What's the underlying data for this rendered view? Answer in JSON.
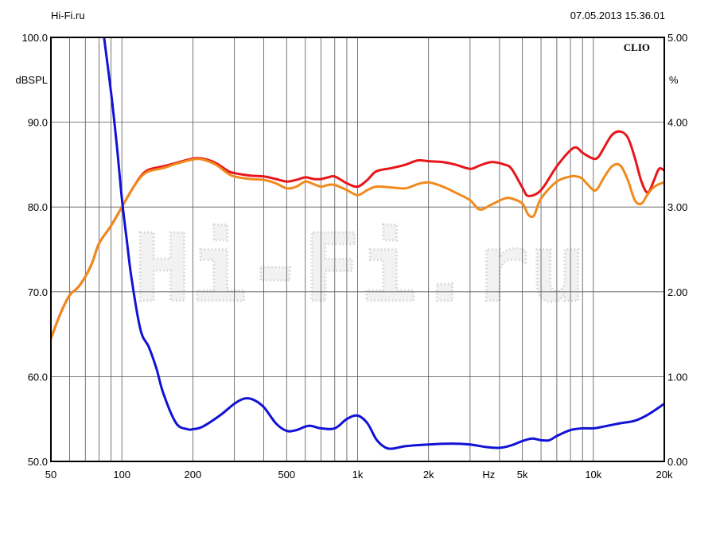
{
  "header": {
    "site": "Hi-Fi.ru",
    "datetime": "07.05.2013 15.36.01"
  },
  "chart_data": {
    "type": "line",
    "brand": "CLIO",
    "watermark": "Hi-Fi.ru",
    "x_scale": "log",
    "xlim": [
      50,
      20000
    ],
    "xlabel": "Hz",
    "x_ticks": [
      50,
      100,
      200,
      500,
      1000,
      2000,
      5000,
      10000,
      20000
    ],
    "x_tick_labels": [
      "50",
      "100",
      "200",
      "500",
      "1k",
      "2k",
      "5k",
      "10k",
      "20k"
    ],
    "ylim": [
      50,
      100
    ],
    "ylabel": "dBSPL",
    "y_ticks": [
      50,
      60,
      70,
      80,
      90,
      100
    ],
    "y_tick_labels": [
      "50.0",
      "60.0",
      "70.0",
      "80.0",
      "90.0",
      "100.0"
    ],
    "y2lim": [
      0,
      5
    ],
    "y2label": "%",
    "y2_ticks": [
      0,
      1,
      2,
      3,
      4,
      5
    ],
    "y2_tick_labels": [
      "0.00",
      "1.00",
      "2.00",
      "3.00",
      "4.00",
      "5.00"
    ],
    "grid": true,
    "series": [
      {
        "color": "#e8161b",
        "axis": "left",
        "points": [
          [
            50,
            64.5
          ],
          [
            55,
            67.5
          ],
          [
            60,
            69.6
          ],
          [
            65,
            70.5
          ],
          [
            70,
            71.8
          ],
          [
            75,
            73.5
          ],
          [
            80,
            75.7
          ],
          [
            90,
            77.8
          ],
          [
            100,
            80.0
          ],
          [
            110,
            82.0
          ],
          [
            120,
            83.6
          ],
          [
            130,
            84.4
          ],
          [
            150,
            84.8
          ],
          [
            170,
            85.2
          ],
          [
            200,
            85.7
          ],
          [
            220,
            85.7
          ],
          [
            250,
            85.2
          ],
          [
            280,
            84.3
          ],
          [
            300,
            84.0
          ],
          [
            350,
            83.7
          ],
          [
            400,
            83.6
          ],
          [
            450,
            83.3
          ],
          [
            500,
            83.0
          ],
          [
            550,
            83.2
          ],
          [
            600,
            83.5
          ],
          [
            650,
            83.3
          ],
          [
            700,
            83.3
          ],
          [
            750,
            83.5
          ],
          [
            800,
            83.6
          ],
          [
            900,
            82.8
          ],
          [
            1000,
            82.4
          ],
          [
            1100,
            83.2
          ],
          [
            1200,
            84.2
          ],
          [
            1400,
            84.6
          ],
          [
            1600,
            85.0
          ],
          [
            1800,
            85.5
          ],
          [
            2000,
            85.4
          ],
          [
            2300,
            85.3
          ],
          [
            2600,
            85.0
          ],
          [
            3000,
            84.5
          ],
          [
            3300,
            84.9
          ],
          [
            3700,
            85.3
          ],
          [
            4200,
            85.0
          ],
          [
            4500,
            84.5
          ],
          [
            5000,
            82.3
          ],
          [
            5300,
            81.3
          ],
          [
            6000,
            82.0
          ],
          [
            7000,
            84.8
          ],
          [
            8000,
            86.7
          ],
          [
            8500,
            87.0
          ],
          [
            9000,
            86.4
          ],
          [
            10000,
            85.7
          ],
          [
            10500,
            85.9
          ],
          [
            11000,
            86.8
          ],
          [
            12000,
            88.5
          ],
          [
            13000,
            88.9
          ],
          [
            14000,
            88.2
          ],
          [
            15000,
            85.8
          ],
          [
            16000,
            83.0
          ],
          [
            17000,
            81.7
          ],
          [
            18000,
            83.0
          ],
          [
            19000,
            84.5
          ],
          [
            20000,
            84.3
          ]
        ]
      },
      {
        "color": "#f08a1c",
        "axis": "left",
        "points": [
          [
            50,
            64.5
          ],
          [
            55,
            67.5
          ],
          [
            60,
            69.6
          ],
          [
            65,
            70.5
          ],
          [
            70,
            71.8
          ],
          [
            75,
            73.5
          ],
          [
            80,
            75.7
          ],
          [
            90,
            77.8
          ],
          [
            100,
            80.0
          ],
          [
            110,
            82.0
          ],
          [
            120,
            83.5
          ],
          [
            130,
            84.2
          ],
          [
            150,
            84.6
          ],
          [
            170,
            85.1
          ],
          [
            200,
            85.6
          ],
          [
            220,
            85.6
          ],
          [
            250,
            85.0
          ],
          [
            280,
            84.0
          ],
          [
            300,
            83.6
          ],
          [
            350,
            83.3
          ],
          [
            400,
            83.2
          ],
          [
            450,
            82.8
          ],
          [
            500,
            82.2
          ],
          [
            550,
            82.4
          ],
          [
            600,
            83.0
          ],
          [
            650,
            82.7
          ],
          [
            700,
            82.4
          ],
          [
            750,
            82.6
          ],
          [
            800,
            82.6
          ],
          [
            900,
            82.0
          ],
          [
            1000,
            81.4
          ],
          [
            1100,
            82.0
          ],
          [
            1200,
            82.4
          ],
          [
            1400,
            82.3
          ],
          [
            1600,
            82.2
          ],
          [
            1800,
            82.7
          ],
          [
            2000,
            82.9
          ],
          [
            2300,
            82.4
          ],
          [
            2600,
            81.7
          ],
          [
            3000,
            80.8
          ],
          [
            3300,
            79.7
          ],
          [
            3700,
            80.3
          ],
          [
            4200,
            81.0
          ],
          [
            4500,
            81.0
          ],
          [
            5000,
            80.4
          ],
          [
            5300,
            79.1
          ],
          [
            5600,
            79.0
          ],
          [
            6000,
            81.0
          ],
          [
            7000,
            83.0
          ],
          [
            8000,
            83.6
          ],
          [
            8500,
            83.6
          ],
          [
            9000,
            83.3
          ],
          [
            10000,
            82.0
          ],
          [
            10500,
            82.3
          ],
          [
            11000,
            83.3
          ],
          [
            12000,
            84.8
          ],
          [
            13000,
            84.9
          ],
          [
            14000,
            83.2
          ],
          [
            15000,
            80.8
          ],
          [
            16000,
            80.4
          ],
          [
            17000,
            81.5
          ],
          [
            18000,
            82.3
          ],
          [
            19000,
            82.7
          ],
          [
            20000,
            82.9
          ]
        ]
      },
      {
        "color": "#1212d6",
        "axis": "right",
        "points": [
          [
            84,
            5.0
          ],
          [
            90,
            4.35
          ],
          [
            95,
            3.75
          ],
          [
            100,
            3.1
          ],
          [
            105,
            2.6
          ],
          [
            110,
            2.15
          ],
          [
            120,
            1.55
          ],
          [
            130,
            1.35
          ],
          [
            140,
            1.1
          ],
          [
            150,
            0.8
          ],
          [
            170,
            0.45
          ],
          [
            190,
            0.38
          ],
          [
            200,
            0.38
          ],
          [
            220,
            0.41
          ],
          [
            260,
            0.54
          ],
          [
            300,
            0.68
          ],
          [
            330,
            0.74
          ],
          [
            360,
            0.73
          ],
          [
            400,
            0.64
          ],
          [
            450,
            0.45
          ],
          [
            500,
            0.36
          ],
          [
            550,
            0.37
          ],
          [
            620,
            0.42
          ],
          [
            700,
            0.39
          ],
          [
            800,
            0.39
          ],
          [
            900,
            0.5
          ],
          [
            1000,
            0.54
          ],
          [
            1100,
            0.45
          ],
          [
            1200,
            0.26
          ],
          [
            1300,
            0.17
          ],
          [
            1400,
            0.15
          ],
          [
            1600,
            0.18
          ],
          [
            2000,
            0.2
          ],
          [
            2500,
            0.21
          ],
          [
            3000,
            0.2
          ],
          [
            3500,
            0.17
          ],
          [
            4000,
            0.16
          ],
          [
            4500,
            0.19
          ],
          [
            5000,
            0.24
          ],
          [
            5500,
            0.27
          ],
          [
            6000,
            0.25
          ],
          [
            6500,
            0.25
          ],
          [
            7000,
            0.3
          ],
          [
            8000,
            0.37
          ],
          [
            9000,
            0.39
          ],
          [
            10000,
            0.39
          ],
          [
            11000,
            0.41
          ],
          [
            13000,
            0.45
          ],
          [
            15000,
            0.48
          ],
          [
            17000,
            0.55
          ],
          [
            20000,
            0.68
          ]
        ]
      }
    ]
  }
}
